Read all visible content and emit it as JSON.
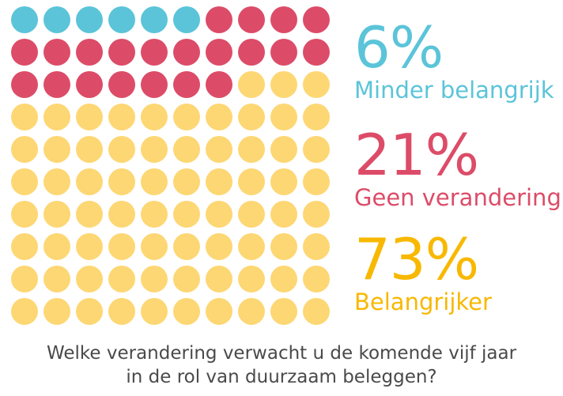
{
  "chart_data": {
    "type": "waffle",
    "grid": {
      "rows": 10,
      "cols": 10
    },
    "categories": [
      "Minder belangrijk",
      "Geen verandering",
      "Belangrijker"
    ],
    "values": [
      6,
      21,
      73
    ],
    "value_labels": [
      "6%",
      "21%",
      "73%"
    ],
    "colors": [
      "#5bc4d9",
      "#dc4c68",
      "#fdd773"
    ],
    "label_colors": [
      "#5bc4d9",
      "#dc4c68",
      "#f8b800"
    ],
    "title_lines": [
      "Welke verandering verwacht u de komende vijf jaar",
      "in de rol van duurzaam beleggen?"
    ]
  }
}
